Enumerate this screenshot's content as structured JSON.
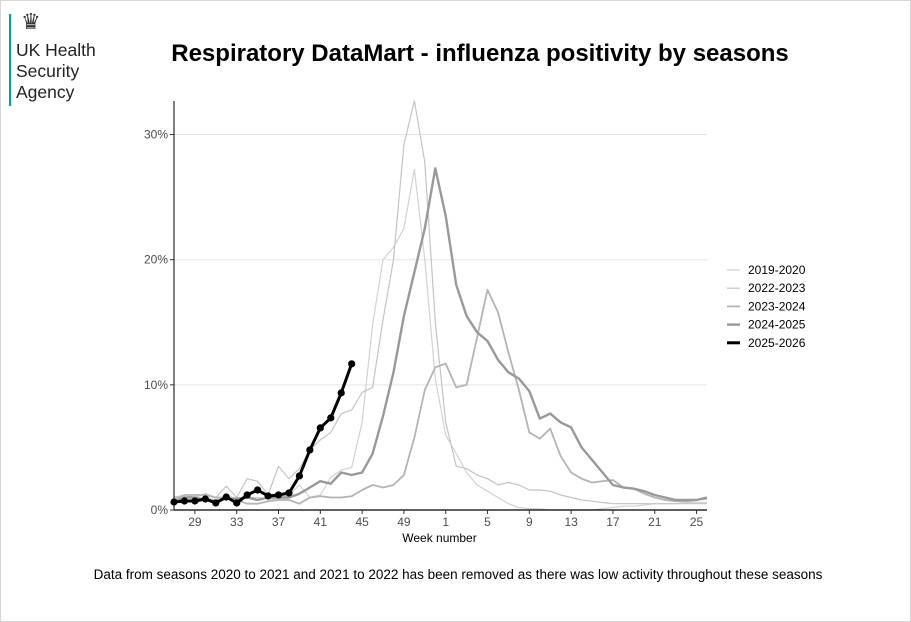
{
  "logo": {
    "crest_icon": "royal-coat-of-arms-icon",
    "lines": [
      "UK Health",
      "Security",
      "Agency"
    ],
    "accent_color": "#00a398"
  },
  "footnote": "Data from seasons 2020 to 2021 and 2021 to 2022 has been removed as there was low activity throughout these seasons",
  "chart_data": {
    "type": "line",
    "title": "Respiratory DataMart - influenza positivity by seasons",
    "xlabel": "Week number",
    "ylabel": "",
    "x": [
      27,
      28,
      29,
      30,
      31,
      32,
      33,
      34,
      35,
      36,
      37,
      38,
      39,
      40,
      41,
      42,
      43,
      44,
      45,
      46,
      47,
      48,
      49,
      50,
      51,
      52,
      1,
      2,
      3,
      4,
      5,
      6,
      7,
      8,
      9,
      10,
      11,
      12,
      13,
      14,
      15,
      16,
      17,
      18,
      19,
      20,
      21,
      22,
      23,
      24,
      25,
      26
    ],
    "x_tick_labels": [
      "29",
      "33",
      "37",
      "41",
      "45",
      "49",
      "1",
      "5",
      "9",
      "13",
      "17",
      "21",
      "25"
    ],
    "y_tick_labels": [
      "0%",
      "10%",
      "20%",
      "30%"
    ],
    "ylim": [
      0,
      33
    ],
    "y_ticks": [
      0,
      10,
      20,
      30
    ],
    "grid": "horizontal-major",
    "legend_position": "right",
    "series": [
      {
        "name": "2019-2020",
        "color": "#d2d2d2",
        "width": "thin",
        "values": [
          1.1,
          1.0,
          0.9,
          1.0,
          0.8,
          1.2,
          0.9,
          1.0,
          1.0,
          0.9,
          0.8,
          1.2,
          2.0,
          1.0,
          1.2,
          2.6,
          3.2,
          3.4,
          7.0,
          14.8,
          20.0,
          21.0,
          22.5,
          27.2,
          20.0,
          10.5,
          6.0,
          4.5,
          3.0,
          2.0,
          1.5,
          1.0,
          0.5,
          0.2,
          0.1,
          0.1,
          0.0,
          0.0,
          0.0,
          0.0,
          0.0,
          0.1,
          0.2,
          0.3,
          0.3,
          0.4,
          0.5,
          0.5,
          0.5,
          0.6,
          0.6,
          0.6
        ]
      },
      {
        "name": "2022-2023",
        "color": "#c4c4c4",
        "width": "thin",
        "values": [
          1.0,
          1.2,
          1.0,
          1.3,
          1.0,
          1.9,
          1.0,
          2.5,
          2.3,
          1.2,
          3.5,
          2.5,
          3.3,
          4.8,
          5.6,
          6.2,
          7.7,
          8.0,
          9.4,
          9.8,
          15.2,
          20.0,
          29.2,
          32.7,
          27.8,
          15.0,
          7.0,
          3.5,
          3.3,
          2.8,
          2.5,
          2.0,
          2.2,
          2.0,
          1.6,
          1.6,
          1.5,
          1.2,
          1.0,
          0.8,
          0.7,
          0.6,
          0.5,
          0.5,
          0.5,
          0.5,
          0.5,
          0.5,
          0.5,
          0.5,
          0.5,
          0.5
        ]
      },
      {
        "name": "2023-2024",
        "color": "#b4b4b4",
        "width": "medium",
        "values": [
          0.8,
          1.2,
          1.2,
          1.2,
          1.0,
          1.0,
          0.8,
          0.5,
          0.5,
          0.7,
          0.8,
          0.8,
          0.5,
          1.0,
          1.1,
          1.0,
          1.0,
          1.1,
          1.6,
          2.0,
          1.8,
          2.0,
          2.8,
          5.8,
          9.6,
          11.4,
          11.7,
          9.8,
          10.0,
          13.8,
          17.6,
          15.8,
          12.6,
          9.6,
          6.2,
          5.7,
          6.5,
          4.3,
          3.0,
          2.5,
          2.2,
          2.3,
          2.4,
          1.8,
          1.7,
          1.3,
          1.0,
          0.8,
          0.7,
          0.7,
          0.8,
          0.9
        ]
      },
      {
        "name": "2024-2025",
        "color": "#999999",
        "width": "thick",
        "values": [
          0.6,
          1.0,
          1.0,
          0.8,
          0.7,
          0.9,
          0.9,
          1.0,
          0.8,
          1.0,
          1.0,
          1.0,
          1.3,
          1.8,
          2.3,
          2.1,
          3.0,
          2.8,
          3.0,
          4.5,
          7.5,
          11.0,
          15.5,
          19.0,
          22.5,
          27.3,
          23.5,
          18.0,
          15.5,
          14.2,
          13.5,
          12.0,
          11.0,
          10.5,
          9.5,
          7.3,
          7.7,
          7.0,
          6.6,
          5.0,
          4.0,
          3.0,
          2.0,
          1.8,
          1.7,
          1.5,
          1.2,
          1.0,
          0.8,
          0.8,
          0.8,
          1.0
        ]
      },
      {
        "name": "2025-2026",
        "color": "#000000",
        "width": "bold",
        "markers": true,
        "values": [
          0.64,
          0.72,
          0.72,
          0.88,
          0.56,
          1.04,
          0.56,
          1.2,
          1.6,
          1.12,
          1.2,
          1.36,
          2.72,
          4.8,
          6.56,
          7.36,
          9.36,
          11.68
        ]
      }
    ]
  }
}
